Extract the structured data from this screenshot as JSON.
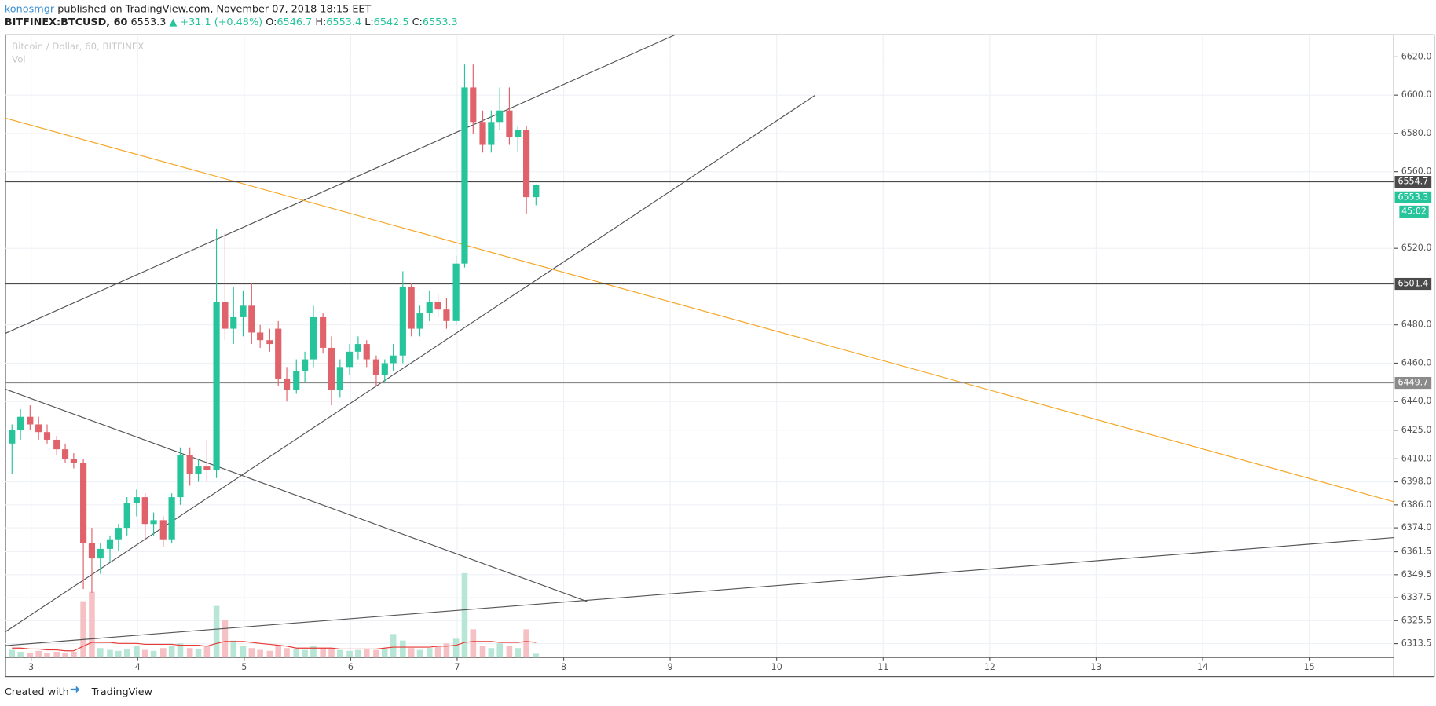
{
  "header": {
    "author": "konosmgr",
    "published": "published on TradingView.com, November 07, 2018 18:15 EET",
    "symbol": "BITFINEX:BTCUSD, 60",
    "last": "6553.3",
    "change": "▲ +31.1 (+0.48%)",
    "o_label": "O:",
    "o": "6546.7",
    "h_label": "H:",
    "h": "6553.4",
    "l_label": "L:",
    "l": "6542.5",
    "c_label": "C:",
    "c": "6553.3"
  },
  "chart_data": {
    "type": "candlestick",
    "legend": "Bitcoin / Dollar, 60, BITFINEX",
    "volume_label": "Vol",
    "up_color": "#26c49a",
    "down_color": "#e0626a",
    "volume_up_color": "#b7e6d6",
    "volume_down_color": "#f6c1c4",
    "volume_ma_color": "#e53935",
    "grid": true,
    "xlim": [
      2.759,
      15.795
    ],
    "xticks": [
      3,
      4,
      5,
      6,
      7,
      8,
      9,
      10,
      11,
      12,
      13,
      14,
      15
    ],
    "ylim": [
      6306.3,
      6631.5
    ],
    "yticks": [
      {
        "value": 6620,
        "label": "6620.0"
      },
      {
        "value": 6600,
        "label": "6600.0"
      },
      {
        "value": 6580,
        "label": "6580.0"
      },
      {
        "value": 6560,
        "label": "6560.0"
      },
      {
        "value": 6520,
        "label": "6520.0"
      },
      {
        "value": 6480,
        "label": "6480.0"
      },
      {
        "value": 6460,
        "label": "6460.0"
      },
      {
        "value": 6440,
        "label": "6440.0"
      },
      {
        "value": 6425,
        "label": "6425.0"
      },
      {
        "value": 6410,
        "label": "6410.0"
      },
      {
        "value": 6398,
        "label": "6398.0"
      },
      {
        "value": 6386,
        "label": "6386.0"
      },
      {
        "value": 6374,
        "label": "6374.0"
      },
      6361.5,
      6349.5,
      6337.5,
      6325.5,
      6313.5
    ],
    "x": [
      2.82,
      2.9,
      2.99,
      3.07,
      3.15,
      3.24,
      3.32,
      3.4,
      3.49,
      3.57,
      3.65,
      3.74,
      3.82,
      3.9,
      3.99,
      4.07,
      4.15,
      4.24,
      4.32,
      4.4,
      4.49,
      4.57,
      4.65,
      4.74,
      4.82,
      4.9,
      4.99,
      5.07,
      5.15,
      5.24,
      5.32,
      5.4,
      5.49,
      5.57,
      5.65,
      5.74,
      5.82,
      5.9,
      5.99,
      6.07,
      6.15,
      6.24,
      6.32,
      6.4,
      6.49,
      6.57,
      6.65,
      6.74,
      6.82,
      6.9,
      6.99,
      7.07,
      7.15,
      7.24,
      7.32,
      7.4,
      7.49,
      7.57,
      7.65,
      7.74
    ],
    "open": [
      6418,
      6425,
      6432,
      6428,
      6424,
      6420,
      6415,
      6410,
      6408,
      6366,
      6358,
      6363,
      6368,
      6374,
      6387,
      6390,
      6376,
      6378,
      6368,
      6390,
      6412,
      6402,
      6406,
      6404,
      6492,
      6478,
      6484,
      6490,
      6476,
      6472,
      6478,
      6452,
      6446,
      6456,
      6462,
      6484,
      6468,
      6446,
      6458,
      6466,
      6470,
      6462,
      6454,
      6460,
      6464,
      6500,
      6478,
      6486,
      6492,
      6488,
      6482,
      6512,
      6604,
      6586,
      6574,
      6586,
      6592,
      6578,
      6582,
      6546.7
    ],
    "high": [
      6428,
      6436,
      6438,
      6432,
      6428,
      6422,
      6418,
      6413,
      6410,
      6374,
      6366,
      6370,
      6376,
      6390,
      6394,
      6392,
      6382,
      6380,
      6392,
      6416,
      6416,
      6410,
      6420,
      6530,
      6528,
      6500,
      6498,
      6502,
      6480,
      6478,
      6482,
      6458,
      6462,
      6466,
      6490,
      6486,
      6474,
      6462,
      6470,
      6474,
      6472,
      6464,
      6462,
      6470,
      6508,
      6502,
      6490,
      6498,
      6496,
      6494,
      6516,
      6616,
      6616,
      6592,
      6592,
      6604,
      6604,
      6584,
      6584,
      6553.4
    ],
    "low": [
      6402,
      6420,
      6425,
      6420,
      6418,
      6412,
      6408,
      6405,
      6342,
      6340,
      6350,
      6356,
      6362,
      6370,
      6380,
      6368,
      6370,
      6364,
      6366,
      6386,
      6396,
      6398,
      6398,
      6400,
      6472,
      6470,
      6474,
      6470,
      6468,
      6466,
      6448,
      6440,
      6444,
      6450,
      6458,
      6465,
      6438,
      6442,
      6454,
      6462,
      6458,
      6448,
      6450,
      6456,
      6460,
      6474,
      6474,
      6482,
      6484,
      6478,
      6480,
      6510,
      6580,
      6570,
      6570,
      6582,
      6574,
      6570,
      6538,
      6542.5
    ],
    "close": [
      6425,
      6432,
      6428,
      6424,
      6420,
      6415,
      6410,
      6408,
      6366,
      6358,
      6363,
      6368,
      6374,
      6387,
      6390,
      6376,
      6378,
      6368,
      6390,
      6412,
      6402,
      6406,
      6404,
      6492,
      6478,
      6484,
      6490,
      6476,
      6472,
      6470,
      6452,
      6446,
      6456,
      6462,
      6484,
      6468,
      6446,
      6458,
      6466,
      6470,
      6462,
      6454,
      6460,
      6464,
      6500,
      6478,
      6486,
      6492,
      6488,
      6482,
      6512,
      6604,
      6586,
      6574,
      6586,
      6592,
      6578,
      6582,
      6546.7,
      6553.3
    ],
    "volume": [
      8,
      6,
      5,
      7,
      5,
      6,
      5,
      6,
      60,
      70,
      10,
      8,
      7,
      9,
      12,
      8,
      7,
      10,
      12,
      15,
      10,
      9,
      12,
      55,
      40,
      18,
      12,
      10,
      8,
      7,
      12,
      10,
      9,
      8,
      12,
      10,
      9,
      8,
      7,
      8,
      9,
      8,
      9,
      25,
      18,
      10,
      8,
      10,
      12,
      15,
      20,
      90,
      30,
      12,
      10,
      15,
      12,
      10,
      30,
      4
    ],
    "volume_ma": [
      10,
      10,
      9,
      9,
      8,
      8,
      7,
      7,
      12,
      16,
      16,
      16,
      15,
      15,
      15,
      14,
      14,
      14,
      14,
      13,
      13,
      13,
      12,
      15,
      17,
      17,
      17,
      16,
      15,
      14,
      13,
      12,
      10,
      10,
      10,
      10,
      10,
      9,
      9,
      9,
      9,
      9,
      10,
      11,
      11,
      11,
      11,
      11,
      12,
      12,
      13,
      16,
      17,
      17,
      17,
      16,
      16,
      16,
      17,
      16
    ],
    "horizontal_lines": [
      {
        "value": 6554.7,
        "color": "#4a4a4a"
      },
      {
        "value": 6501.4,
        "color": "#4a4a4a"
      },
      {
        "value": 6449.7,
        "color": "#8a8a8a"
      }
    ],
    "last_price": 6553.3,
    "countdown": "45:02",
    "trend_lines": [
      {
        "x": [
          2.759,
          9.045
        ],
        "y": [
          6475.6,
          6631.5
        ],
        "color": "#555555"
      },
      {
        "x": [
          2.759,
          10.36
        ],
        "y": [
          6319.7,
          6599.9
        ],
        "color": "#555555"
      },
      {
        "x": [
          2.759,
          15.795
        ],
        "y": [
          6588.0,
          6387.6
        ],
        "color": "#f5a623"
      },
      {
        "x": [
          2.759,
          8.22
        ],
        "y": [
          6446.4,
          6335.5
        ],
        "color": "#555555"
      },
      {
        "x": [
          2.759,
          15.795
        ],
        "y": [
          6312.5,
          6368.9
        ],
        "color": "#555555"
      }
    ]
  },
  "footer": {
    "created": "Created with",
    "brand": "TradingView"
  }
}
